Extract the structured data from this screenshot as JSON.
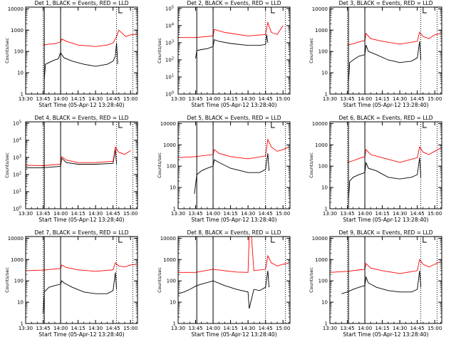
{
  "figure": {
    "background": "#ffffff",
    "colors": {
      "events": "#000000",
      "lld": "#ff0000",
      "frame": "#000000"
    }
  },
  "chart_data": [
    {
      "type": "line",
      "title": "Det 1, BLACK = Events, RED = LLD",
      "xlabel": "Start Time (05-Apr-12 13:28:40)",
      "ylabel": "Counts/sec",
      "x_tick_labels": [
        "13:30",
        "13:45",
        "14:00",
        "14:15",
        "14:30",
        "14:45",
        "15:00"
      ],
      "y_tick_labels": [
        "1",
        "10",
        "100",
        "1000",
        "10000"
      ],
      "x_range": [
        "13:30",
        "15:06"
      ],
      "ylim": [
        1,
        12000
      ],
      "y_scale": "log",
      "solid_markers": [
        "13:46",
        "14:00"
      ],
      "dotted_markers": [
        "13:45",
        "14:48",
        "15:02"
      ],
      "bracket_marker": "14:50",
      "series": [
        {
          "name": "Events",
          "color": "#000000",
          "x": [
            "13:46",
            "13:47",
            "13:50",
            "13:55",
            "13:58",
            "14:00",
            "14:01",
            "14:03",
            "14:10",
            "14:20",
            "14:30",
            "14:40",
            "14:45",
            "14:47",
            "14:48",
            "14:49"
          ],
          "values": [
            5,
            25,
            30,
            40,
            45,
            90,
            70,
            50,
            35,
            25,
            20,
            25,
            35,
            60,
            250,
            25
          ]
        },
        {
          "name": "LLD",
          "color": "#ff0000",
          "x": [
            "13:45",
            "13:50",
            "13:55",
            "14:00",
            "14:01",
            "14:05",
            "14:15",
            "14:30",
            "14:40",
            "14:45",
            "14:48",
            "14:50",
            "14:53",
            "14:56",
            "15:00",
            "15:05"
          ],
          "values": [
            200,
            220,
            230,
            280,
            380,
            300,
            200,
            170,
            200,
            250,
            500,
            1000,
            700,
            500,
            600,
            650
          ]
        }
      ]
    },
    {
      "type": "line",
      "title": "Det 2, BLACK = Events, RED = LLD",
      "xlabel": "Start Time (05-Apr-12 13:28:40)",
      "ylabel": "Counts/sec",
      "x_tick_labels": [
        "13:30",
        "13:45",
        "14:00",
        "14:15",
        "14:30",
        "14:45",
        "15:00"
      ],
      "y_tick_labels": [
        "10^0",
        "10^1",
        "10^2",
        "10^3",
        "10^4",
        "10^5"
      ],
      "x_range": [
        "13:30",
        "15:06"
      ],
      "ylim": [
        1,
        120000
      ],
      "y_scale": "log",
      "solid_markers": [
        "13:46",
        "14:00"
      ],
      "dotted_markers": [
        "14:45",
        "15:02"
      ],
      "bracket_marker": "14:50",
      "series": [
        {
          "name": "Events",
          "color": "#000000",
          "x": [
            "13:45",
            "13:46",
            "13:50",
            "13:55",
            "14:00",
            "14:01",
            "14:05",
            "14:15",
            "14:30",
            "14:40",
            "14:45",
            "14:46",
            "14:47"
          ],
          "values": [
            120,
            350,
            400,
            450,
            600,
            1500,
            1200,
            900,
            700,
            700,
            800,
            3000,
            1000
          ]
        },
        {
          "name": "LLD",
          "color": "#ff0000",
          "x": [
            "13:30",
            "13:45",
            "14:00",
            "14:01",
            "14:10",
            "14:30",
            "14:45",
            "14:47",
            "14:50",
            "14:55",
            "15:00"
          ],
          "values": [
            2000,
            2000,
            2500,
            6000,
            4000,
            2500,
            3000,
            15000,
            4000,
            3000,
            10000
          ]
        }
      ]
    },
    {
      "type": "line",
      "title": "Det 3, BLACK = Events, RED = LLD",
      "xlabel": "Start Time (05-Apr-12 13:28:40)",
      "ylabel": "Counts/sec",
      "x_tick_labels": [
        "13:30",
        "13:45",
        "14:00",
        "14:15",
        "14:30",
        "14:45",
        "15:00"
      ],
      "y_tick_labels": [
        "1",
        "10",
        "100",
        "1000",
        "10000"
      ],
      "x_range": [
        "13:30",
        "15:06"
      ],
      "ylim": [
        1,
        12000
      ],
      "y_scale": "log",
      "solid_markers": [
        "13:46",
        "14:00"
      ],
      "dotted_markers": [
        "13:45",
        "14:48",
        "15:02"
      ],
      "bracket_marker": "14:50",
      "series": [
        {
          "name": "Events",
          "color": "#000000",
          "x": [
            "13:46",
            "13:47",
            "13:50",
            "13:55",
            "14:00",
            "14:01",
            "14:03",
            "14:10",
            "14:20",
            "14:30",
            "14:40",
            "14:45",
            "14:47",
            "14:48"
          ],
          "values": [
            4,
            30,
            40,
            60,
            70,
            200,
            100,
            70,
            40,
            30,
            35,
            50,
            300,
            40
          ]
        },
        {
          "name": "LLD",
          "color": "#ff0000",
          "x": [
            "13:45",
            "13:50",
            "13:55",
            "14:00",
            "14:01",
            "14:05",
            "14:15",
            "14:30",
            "14:45",
            "14:47",
            "14:50",
            "14:55",
            "15:00",
            "15:05"
          ],
          "values": [
            200,
            230,
            280,
            330,
            700,
            400,
            300,
            220,
            300,
            800,
            500,
            400,
            600,
            700
          ]
        }
      ]
    },
    {
      "type": "line",
      "title": "Det 4, BLACK = Events, RED = LLD",
      "xlabel": "Start Time (05-Apr-12 13:28:40)",
      "ylabel": "Counts/sec",
      "x_tick_labels": [
        "13:30",
        "13:45",
        "14:00",
        "14:15",
        "14:30",
        "14:45",
        "15:00"
      ],
      "y_tick_labels": [
        "10^0",
        "10^1",
        "10^2",
        "10^3",
        "10^4",
        "10^5"
      ],
      "x_range": [
        "13:30",
        "15:06"
      ],
      "ylim": [
        1,
        120000
      ],
      "y_scale": "log",
      "solid_markers": [
        "13:46",
        "14:00"
      ],
      "dotted_markers": [
        "13:45",
        "14:48",
        "15:02"
      ],
      "bracket_marker": "14:50",
      "series": [
        {
          "name": "Events",
          "color": "#000000",
          "x": [
            "13:30",
            "13:45",
            "14:00",
            "14:01",
            "14:05",
            "14:15",
            "14:30",
            "14:45",
            "14:47",
            "14:48"
          ],
          "values": [
            250,
            250,
            300,
            900,
            500,
            400,
            400,
            450,
            3000,
            400
          ]
        },
        {
          "name": "LLD",
          "color": "#ff0000",
          "x": [
            "13:30",
            "13:45",
            "14:00",
            "14:01",
            "14:05",
            "14:15",
            "14:30",
            "14:45",
            "14:47",
            "14:50",
            "14:55",
            "15:00"
          ],
          "values": [
            350,
            330,
            400,
            1100,
            700,
            500,
            500,
            600,
            4000,
            2000,
            1500,
            2500
          ]
        }
      ]
    },
    {
      "type": "line",
      "title": "Det 5, BLACK = Events, RED = LLD",
      "xlabel": "Start Time (05-Apr-12 13:28:40)",
      "ylabel": "Counts/sec",
      "x_tick_labels": [
        "13:30",
        "13:45",
        "14:00",
        "14:15",
        "14:30",
        "14:45",
        "15:00"
      ],
      "y_tick_labels": [
        "1",
        "10",
        "100",
        "1000",
        "10000"
      ],
      "x_range": [
        "13:30",
        "15:06"
      ],
      "ylim": [
        1,
        12000
      ],
      "y_scale": "log",
      "solid_markers": [
        "13:46",
        "14:00"
      ],
      "dotted_markers": [
        "14:45",
        "15:02"
      ],
      "bracket_marker": "14:50",
      "series": [
        {
          "name": "Events",
          "color": "#000000",
          "x": [
            "13:44",
            "13:46",
            "13:50",
            "13:55",
            "14:00",
            "14:01",
            "14:05",
            "14:15",
            "14:30",
            "14:40",
            "14:45",
            "14:47",
            "14:48"
          ],
          "values": [
            5,
            40,
            60,
            80,
            100,
            200,
            150,
            80,
            50,
            50,
            70,
            400,
            60
          ]
        },
        {
          "name": "LLD",
          "color": "#ff0000",
          "x": [
            "13:30",
            "13:45",
            "14:00",
            "14:01",
            "14:05",
            "14:15",
            "14:30",
            "14:45",
            "14:47",
            "14:50",
            "14:55",
            "15:00",
            "15:05"
          ],
          "values": [
            250,
            280,
            350,
            600,
            400,
            280,
            220,
            300,
            1800,
            800,
            500,
            600,
            800
          ]
        }
      ]
    },
    {
      "type": "line",
      "title": "Det 6, BLACK = Events, RED = LLD",
      "xlabel": "Start Time (05-Apr-12 13:28:40)",
      "ylabel": "Counts/sec",
      "x_tick_labels": [
        "13:30",
        "13:45",
        "14:00",
        "14:15",
        "14:30",
        "14:45",
        "15:00"
      ],
      "y_tick_labels": [
        "1",
        "10",
        "100",
        "1000",
        "10000"
      ],
      "x_range": [
        "13:30",
        "15:06"
      ],
      "ylim": [
        1,
        12000
      ],
      "y_scale": "log",
      "solid_markers": [
        "13:46",
        "14:00"
      ],
      "dotted_markers": [
        "13:45",
        "14:48",
        "15:02"
      ],
      "bracket_marker": "14:50",
      "series": [
        {
          "name": "Events",
          "color": "#000000",
          "x": [
            "13:46",
            "13:47",
            "13:50",
            "13:55",
            "14:00",
            "14:01",
            "14:03",
            "14:10",
            "14:20",
            "14:30",
            "14:40",
            "14:45",
            "14:47",
            "14:48"
          ],
          "values": [
            3,
            20,
            30,
            40,
            50,
            150,
            80,
            60,
            30,
            25,
            30,
            40,
            250,
            30
          ]
        },
        {
          "name": "LLD",
          "color": "#ff0000",
          "x": [
            "13:45",
            "13:50",
            "13:55",
            "14:00",
            "14:01",
            "14:05",
            "14:15",
            "14:30",
            "14:45",
            "14:47",
            "14:50",
            "14:55",
            "15:00",
            "15:05"
          ],
          "values": [
            150,
            180,
            230,
            280,
            600,
            350,
            250,
            150,
            250,
            800,
            450,
            350,
            500,
            700
          ]
        }
      ]
    },
    {
      "type": "line",
      "title": "Det 7, BLACK = Events, RED = LLD",
      "xlabel": "Start Time (05-Apr-12 13:28:40)",
      "ylabel": "Counts/sec",
      "x_tick_labels": [
        "13:30",
        "13:45",
        "14:00",
        "14:15",
        "14:30",
        "14:45",
        "15:00"
      ],
      "y_tick_labels": [
        "1",
        "10",
        "100",
        "1000",
        "10000"
      ],
      "x_range": [
        "13:30",
        "15:06"
      ],
      "ylim": [
        1,
        12000
      ],
      "y_scale": "log",
      "solid_markers": [
        "13:46",
        "14:00"
      ],
      "dotted_markers": [
        "13:45",
        "14:48",
        "15:02"
      ],
      "bracket_marker": "14:50",
      "series": [
        {
          "name": "Events",
          "color": "#000000",
          "x": [
            "13:45",
            "13:46",
            "13:50",
            "13:55",
            "14:00",
            "14:01",
            "14:03",
            "14:10",
            "14:20",
            "14:30",
            "14:40",
            "14:45",
            "14:47",
            "14:48"
          ],
          "values": [
            3,
            30,
            50,
            60,
            70,
            100,
            80,
            50,
            30,
            25,
            25,
            35,
            250,
            40
          ]
        },
        {
          "name": "LLD",
          "color": "#ff0000",
          "x": [
            "13:30",
            "13:45",
            "14:00",
            "14:01",
            "14:05",
            "14:15",
            "14:30",
            "14:45",
            "14:47",
            "14:50",
            "14:55",
            "15:00",
            "15:05"
          ],
          "values": [
            300,
            320,
            380,
            550,
            420,
            330,
            280,
            330,
            700,
            500,
            450,
            550,
            600
          ]
        }
      ]
    },
    {
      "type": "line",
      "title": "Det 8, BLACK = Events, RED = LLD",
      "xlabel": "Start Time (05-Apr-12 13:28:40)",
      "ylabel": "Counts/sec",
      "x_tick_labels": [
        "13:30",
        "13:45",
        "14:00",
        "14:15",
        "14:30",
        "14:45",
        "15:00"
      ],
      "y_tick_labels": [
        "1",
        "10",
        "100",
        "1000",
        "10000"
      ],
      "x_range": [
        "13:30",
        "15:06"
      ],
      "ylim": [
        1,
        12000
      ],
      "y_scale": "log",
      "solid_markers": [
        "13:46",
        "14:00"
      ],
      "dotted_markers": [
        "14:45",
        "15:02"
      ],
      "bracket_marker": "14:50",
      "series": [
        {
          "name": "Events",
          "color": "#000000",
          "x": [
            "13:30",
            "13:35",
            "13:40",
            "13:46",
            "13:50",
            "14:00",
            "14:10",
            "14:20",
            "14:30",
            "14:31",
            "14:35",
            "14:40",
            "14:45",
            "14:47",
            "14:48"
          ],
          "values": [
            25,
            30,
            40,
            60,
            70,
            100,
            60,
            40,
            30,
            5,
            40,
            35,
            50,
            300,
            50
          ]
        },
        {
          "name": "LLD",
          "color": "#ff0000",
          "x": [
            "13:30",
            "13:45",
            "14:00",
            "14:10",
            "14:20",
            "14:30",
            "14:31",
            "14:33",
            "14:35",
            "14:45",
            "14:47",
            "14:50",
            "14:55",
            "15:00",
            "15:05"
          ],
          "values": [
            250,
            250,
            350,
            300,
            260,
            250,
            12000,
            12000,
            300,
            350,
            1500,
            700,
            500,
            600,
            700
          ]
        }
      ]
    },
    {
      "type": "line",
      "title": "Det 9, BLACK = Events, RED = LLD",
      "xlabel": "Start Time (05-Apr-12 13:28:40)",
      "ylabel": "Counts/sec",
      "x_tick_labels": [
        "13:30",
        "13:45",
        "14:00",
        "14:15",
        "14:30",
        "14:45",
        "15:00"
      ],
      "y_tick_labels": [
        "1",
        "10",
        "100",
        "1000",
        "10000"
      ],
      "x_range": [
        "13:30",
        "15:06"
      ],
      "ylim": [
        1,
        12000
      ],
      "y_scale": "log",
      "solid_markers": [
        "13:46",
        "14:00"
      ],
      "dotted_markers": [
        "13:45",
        "14:48",
        "15:02"
      ],
      "bracket_marker": "14:50",
      "series": [
        {
          "name": "Events",
          "color": "#000000",
          "x": [
            "13:40",
            "13:45",
            "13:50",
            "13:55",
            "14:00",
            "14:01",
            "14:03",
            "14:10",
            "14:20",
            "14:30",
            "14:40",
            "14:45",
            "14:47",
            "14:48"
          ],
          "values": [
            25,
            30,
            40,
            50,
            60,
            150,
            80,
            50,
            35,
            30,
            30,
            40,
            300,
            50
          ]
        },
        {
          "name": "LLD",
          "color": "#ff0000",
          "x": [
            "13:30",
            "13:45",
            "14:00",
            "14:01",
            "14:05",
            "14:15",
            "14:30",
            "14:45",
            "14:47",
            "14:50",
            "14:55",
            "15:00",
            "15:05"
          ],
          "values": [
            250,
            280,
            350,
            650,
            400,
            300,
            220,
            300,
            1000,
            600,
            450,
            600,
            800
          ]
        }
      ]
    }
  ]
}
